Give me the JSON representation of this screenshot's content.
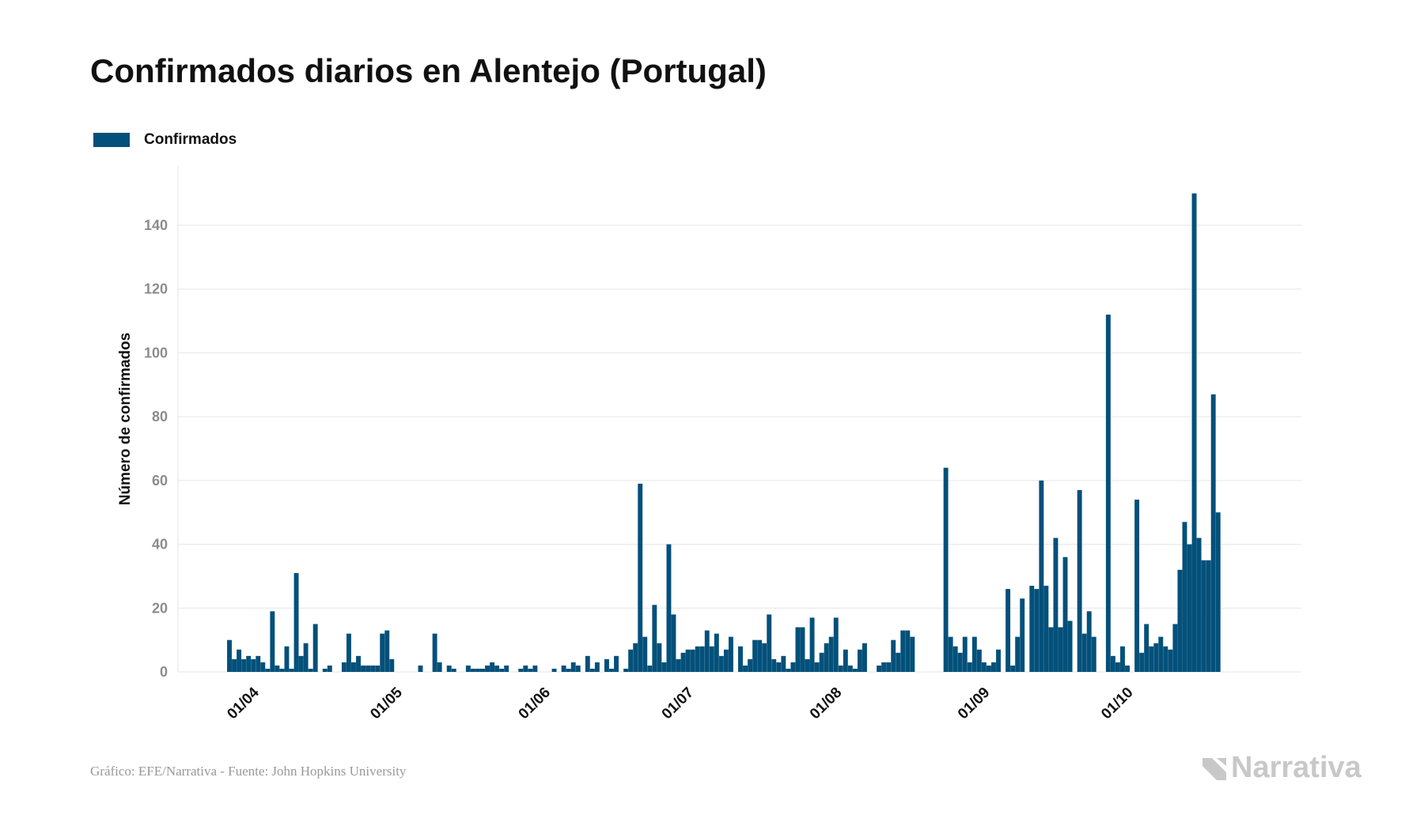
{
  "title": "Confirmados diarios en Alentejo (Portugal)",
  "legend": {
    "label": "Confirmados",
    "color": "#03507a"
  },
  "footer": {
    "source": "Gráfico: EFE/Narrativa - Fuente: John Hopkins University",
    "brand": "Narrativa"
  },
  "chart_data": {
    "type": "bar",
    "title": "Confirmados diarios en Alentejo (Portugal)",
    "ylabel": "Número de confirmados",
    "xlabel": "",
    "ylim": [
      0,
      155
    ],
    "yticks": [
      0,
      20,
      40,
      60,
      80,
      100,
      120,
      140
    ],
    "grid": true,
    "legend_position": "top-left",
    "x_start": "2020-03-26",
    "x_end": "2020-10-26",
    "xticks": [
      {
        "label": "01/04",
        "date": "2020-04-01"
      },
      {
        "label": "01/05",
        "date": "2020-05-01"
      },
      {
        "label": "01/06",
        "date": "2020-06-01"
      },
      {
        "label": "01/07",
        "date": "2020-07-01"
      },
      {
        "label": "01/08",
        "date": "2020-08-01"
      },
      {
        "label": "01/09",
        "date": "2020-09-01"
      },
      {
        "label": "01/10",
        "date": "2020-10-01"
      }
    ],
    "series": [
      {
        "name": "Confirmados",
        "color": "#03507a",
        "points": [
          [
            "2020-03-26",
            10
          ],
          [
            "2020-03-27",
            4
          ],
          [
            "2020-03-28",
            7
          ],
          [
            "2020-03-29",
            4
          ],
          [
            "2020-03-30",
            5
          ],
          [
            "2020-03-31",
            4
          ],
          [
            "2020-04-01",
            5
          ],
          [
            "2020-04-02",
            3
          ],
          [
            "2020-04-03",
            1
          ],
          [
            "2020-04-04",
            19
          ],
          [
            "2020-04-05",
            2
          ],
          [
            "2020-04-06",
            1
          ],
          [
            "2020-04-07",
            8
          ],
          [
            "2020-04-08",
            1
          ],
          [
            "2020-04-09",
            31
          ],
          [
            "2020-04-10",
            5
          ],
          [
            "2020-04-11",
            9
          ],
          [
            "2020-04-12",
            1
          ],
          [
            "2020-04-13",
            15
          ],
          [
            "2020-04-14",
            0
          ],
          [
            "2020-04-15",
            1
          ],
          [
            "2020-04-16",
            2
          ],
          [
            "2020-04-17",
            0
          ],
          [
            "2020-04-18",
            0
          ],
          [
            "2020-04-19",
            3
          ],
          [
            "2020-04-20",
            12
          ],
          [
            "2020-04-21",
            3
          ],
          [
            "2020-04-22",
            5
          ],
          [
            "2020-04-23",
            2
          ],
          [
            "2020-04-24",
            2
          ],
          [
            "2020-04-25",
            2
          ],
          [
            "2020-04-26",
            2
          ],
          [
            "2020-04-27",
            12
          ],
          [
            "2020-04-28",
            13
          ],
          [
            "2020-04-29",
            4
          ],
          [
            "2020-04-30",
            0
          ],
          [
            "2020-05-01",
            0
          ],
          [
            "2020-05-02",
            0
          ],
          [
            "2020-05-03",
            0
          ],
          [
            "2020-05-04",
            0
          ],
          [
            "2020-05-05",
            2
          ],
          [
            "2020-05-06",
            0
          ],
          [
            "2020-05-07",
            0
          ],
          [
            "2020-05-08",
            12
          ],
          [
            "2020-05-09",
            3
          ],
          [
            "2020-05-10",
            0
          ],
          [
            "2020-05-11",
            2
          ],
          [
            "2020-05-12",
            1
          ],
          [
            "2020-05-13",
            0
          ],
          [
            "2020-05-14",
            0
          ],
          [
            "2020-05-15",
            2
          ],
          [
            "2020-05-16",
            1
          ],
          [
            "2020-05-17",
            1
          ],
          [
            "2020-05-18",
            1
          ],
          [
            "2020-05-19",
            2
          ],
          [
            "2020-05-20",
            3
          ],
          [
            "2020-05-21",
            2
          ],
          [
            "2020-05-22",
            1
          ],
          [
            "2020-05-23",
            2
          ],
          [
            "2020-05-24",
            0
          ],
          [
            "2020-05-25",
            0
          ],
          [
            "2020-05-26",
            1
          ],
          [
            "2020-05-27",
            2
          ],
          [
            "2020-05-28",
            1
          ],
          [
            "2020-05-29",
            2
          ],
          [
            "2020-05-30",
            0
          ],
          [
            "2020-05-31",
            0
          ],
          [
            "2020-06-01",
            0
          ],
          [
            "2020-06-02",
            1
          ],
          [
            "2020-06-03",
            0
          ],
          [
            "2020-06-04",
            2
          ],
          [
            "2020-06-05",
            1
          ],
          [
            "2020-06-06",
            3
          ],
          [
            "2020-06-07",
            2
          ],
          [
            "2020-06-08",
            0
          ],
          [
            "2020-06-09",
            5
          ],
          [
            "2020-06-10",
            1
          ],
          [
            "2020-06-11",
            3
          ],
          [
            "2020-06-12",
            0
          ],
          [
            "2020-06-13",
            4
          ],
          [
            "2020-06-14",
            1
          ],
          [
            "2020-06-15",
            5
          ],
          [
            "2020-06-16",
            0
          ],
          [
            "2020-06-17",
            1
          ],
          [
            "2020-06-18",
            7
          ],
          [
            "2020-06-19",
            9
          ],
          [
            "2020-06-20",
            59
          ],
          [
            "2020-06-21",
            11
          ],
          [
            "2020-06-22",
            2
          ],
          [
            "2020-06-23",
            21
          ],
          [
            "2020-06-24",
            9
          ],
          [
            "2020-06-25",
            3
          ],
          [
            "2020-06-26",
            40
          ],
          [
            "2020-06-27",
            18
          ],
          [
            "2020-06-28",
            4
          ],
          [
            "2020-06-29",
            6
          ],
          [
            "2020-06-30",
            7
          ],
          [
            "2020-07-01",
            7
          ],
          [
            "2020-07-02",
            8
          ],
          [
            "2020-07-03",
            8
          ],
          [
            "2020-07-04",
            13
          ],
          [
            "2020-07-05",
            8
          ],
          [
            "2020-07-06",
            12
          ],
          [
            "2020-07-07",
            5
          ],
          [
            "2020-07-08",
            7
          ],
          [
            "2020-07-09",
            11
          ],
          [
            "2020-07-10",
            0
          ],
          [
            "2020-07-11",
            8
          ],
          [
            "2020-07-12",
            2
          ],
          [
            "2020-07-13",
            4
          ],
          [
            "2020-07-14",
            10
          ],
          [
            "2020-07-15",
            10
          ],
          [
            "2020-07-16",
            9
          ],
          [
            "2020-07-17",
            18
          ],
          [
            "2020-07-18",
            4
          ],
          [
            "2020-07-19",
            3
          ],
          [
            "2020-07-20",
            5
          ],
          [
            "2020-07-21",
            1
          ],
          [
            "2020-07-22",
            3
          ],
          [
            "2020-07-23",
            14
          ],
          [
            "2020-07-24",
            14
          ],
          [
            "2020-07-25",
            4
          ],
          [
            "2020-07-26",
            17
          ],
          [
            "2020-07-27",
            3
          ],
          [
            "2020-07-28",
            6
          ],
          [
            "2020-07-29",
            9
          ],
          [
            "2020-07-30",
            11
          ],
          [
            "2020-07-31",
            17
          ],
          [
            "2020-08-01",
            2
          ],
          [
            "2020-08-02",
            7
          ],
          [
            "2020-08-03",
            2
          ],
          [
            "2020-08-04",
            1
          ],
          [
            "2020-08-05",
            7
          ],
          [
            "2020-08-06",
            9
          ],
          [
            "2020-08-07",
            0
          ],
          [
            "2020-08-08",
            0
          ],
          [
            "2020-08-09",
            2
          ],
          [
            "2020-08-10",
            3
          ],
          [
            "2020-08-11",
            3
          ],
          [
            "2020-08-12",
            10
          ],
          [
            "2020-08-13",
            6
          ],
          [
            "2020-08-14",
            13
          ],
          [
            "2020-08-15",
            13
          ],
          [
            "2020-08-16",
            11
          ],
          [
            "2020-08-17",
            0
          ],
          [
            "2020-08-18",
            0
          ],
          [
            "2020-08-19",
            0
          ],
          [
            "2020-08-20",
            0
          ],
          [
            "2020-08-21",
            0
          ],
          [
            "2020-08-22",
            0
          ],
          [
            "2020-08-23",
            64
          ],
          [
            "2020-08-24",
            11
          ],
          [
            "2020-08-25",
            8
          ],
          [
            "2020-08-26",
            6
          ],
          [
            "2020-08-27",
            11
          ],
          [
            "2020-08-28",
            3
          ],
          [
            "2020-08-29",
            11
          ],
          [
            "2020-08-30",
            7
          ],
          [
            "2020-08-31",
            3
          ],
          [
            "2020-09-01",
            2
          ],
          [
            "2020-09-02",
            3
          ],
          [
            "2020-09-03",
            7
          ],
          [
            "2020-09-04",
            0
          ],
          [
            "2020-09-05",
            26
          ],
          [
            "2020-09-06",
            2
          ],
          [
            "2020-09-07",
            11
          ],
          [
            "2020-09-08",
            23
          ],
          [
            "2020-09-09",
            0
          ],
          [
            "2020-09-10",
            27
          ],
          [
            "2020-09-11",
            26
          ],
          [
            "2020-09-12",
            60
          ],
          [
            "2020-09-13",
            27
          ],
          [
            "2020-09-14",
            14
          ],
          [
            "2020-09-15",
            42
          ],
          [
            "2020-09-16",
            14
          ],
          [
            "2020-09-17",
            36
          ],
          [
            "2020-09-18",
            16
          ],
          [
            "2020-09-19",
            0
          ],
          [
            "2020-09-20",
            57
          ],
          [
            "2020-09-21",
            12
          ],
          [
            "2020-09-22",
            19
          ],
          [
            "2020-09-23",
            11
          ],
          [
            "2020-09-24",
            0
          ],
          [
            "2020-09-25",
            0
          ],
          [
            "2020-09-26",
            112
          ],
          [
            "2020-09-27",
            5
          ],
          [
            "2020-09-28",
            3
          ],
          [
            "2020-09-29",
            8
          ],
          [
            "2020-09-30",
            2
          ],
          [
            "2020-10-01",
            0
          ],
          [
            "2020-10-02",
            54
          ],
          [
            "2020-10-03",
            6
          ],
          [
            "2020-10-04",
            15
          ],
          [
            "2020-10-05",
            8
          ],
          [
            "2020-10-06",
            9
          ],
          [
            "2020-10-07",
            11
          ],
          [
            "2020-10-08",
            8
          ],
          [
            "2020-10-09",
            7
          ],
          [
            "2020-10-10",
            15
          ],
          [
            "2020-10-11",
            32
          ],
          [
            "2020-10-12",
            47
          ],
          [
            "2020-10-13",
            40
          ],
          [
            "2020-10-14",
            150
          ],
          [
            "2020-10-15",
            42
          ],
          [
            "2020-10-16",
            35
          ],
          [
            "2020-10-17",
            35
          ],
          [
            "2020-10-18",
            87
          ],
          [
            "2020-10-19",
            50
          ]
        ]
      }
    ]
  }
}
